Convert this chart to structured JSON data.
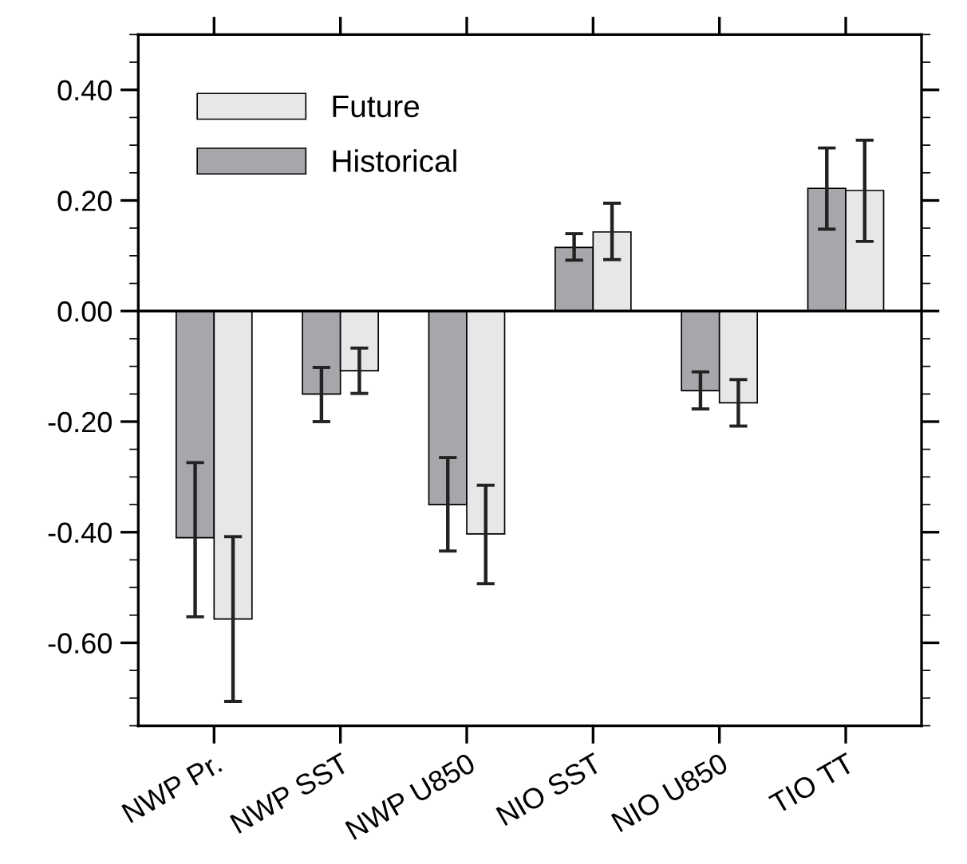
{
  "chart_data": {
    "type": "bar",
    "categories": [
      "NWP Pr.",
      "NWP SST",
      "NWP U850",
      "NIO SST",
      "NIO U850",
      "TIO TT"
    ],
    "series": [
      {
        "name": "Historical",
        "color": "#a6a7ab",
        "values": [
          -0.41,
          -0.15,
          -0.35,
          0.115,
          -0.144,
          0.222
        ],
        "errors": [
          [
            -0.553,
            -0.274
          ],
          [
            -0.2,
            -0.102
          ],
          [
            -0.434,
            -0.265
          ],
          [
            0.092,
            0.14
          ],
          [
            -0.177,
            -0.11
          ],
          [
            0.148,
            0.295
          ]
        ]
      },
      {
        "name": "Future",
        "color": "#e6e7e9",
        "values": [
          -0.557,
          -0.108,
          -0.403,
          0.143,
          -0.166,
          0.218
        ],
        "errors": [
          [
            -0.706,
            -0.408
          ],
          [
            -0.149,
            -0.067
          ],
          [
            -0.493,
            -0.315
          ],
          [
            0.093,
            0.195
          ],
          [
            -0.208,
            -0.124
          ],
          [
            0.126,
            0.309
          ]
        ]
      }
    ],
    "ylim": [
      -0.75,
      0.5
    ],
    "yticks": [
      {
        "value": -0.6,
        "label": "-0.60"
      },
      {
        "value": -0.4,
        "label": "-0.40"
      },
      {
        "value": -0.2,
        "label": "-0.20"
      },
      {
        "value": 0,
        "label": "0.00"
      },
      {
        "value": 0.2,
        "label": "0.20"
      },
      {
        "value": 0.4,
        "label": "0.40"
      }
    ],
    "ref_lines": [
      {
        "axis": "y",
        "value": 0,
        "color": "#000000"
      }
    ],
    "legend": "top left",
    "grid": false
  }
}
